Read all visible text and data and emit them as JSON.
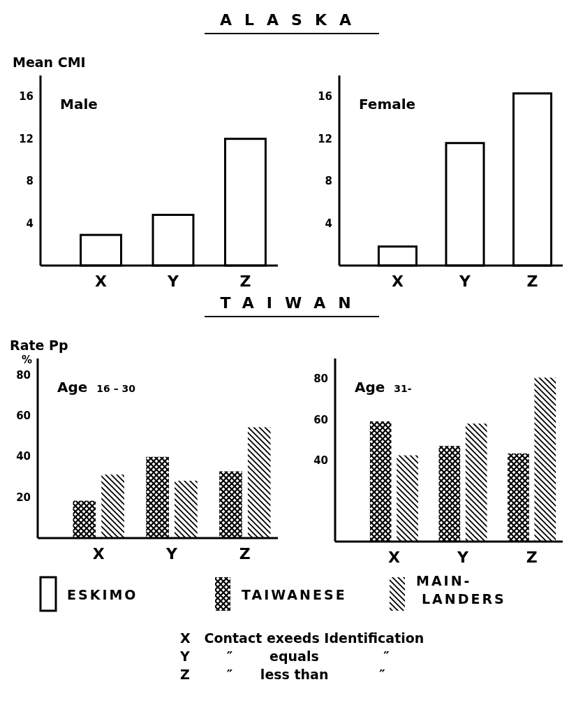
{
  "chart_data": [
    {
      "type": "bar",
      "title": "ALASKA",
      "subtitle": "Male",
      "ylabel": "Mean CMI",
      "categories": [
        "X",
        "Y",
        "Z"
      ],
      "series": [
        {
          "name": "ESKIMO",
          "color": "#ffffff",
          "values": [
            2.9,
            4.8,
            12.0
          ]
        }
      ],
      "ylim": [
        0,
        18
      ],
      "yticks": [
        4,
        8,
        12,
        16
      ],
      "legend": "bottom"
    },
    {
      "type": "bar",
      "subtitle": "Female",
      "categories": [
        "X",
        "Y",
        "Z"
      ],
      "series": [
        {
          "color": "#ffffff",
          "values": [
            1.8,
            11.6,
            16.3
          ]
        }
      ],
      "ylim": [
        0,
        18
      ],
      "yticks": [
        4,
        8,
        12,
        16
      ]
    },
    {
      "type": "bar",
      "title": "TAIWAN",
      "subtitle": "Age $_{16 – 30}$",
      "ylabel": "Rate Pp",
      "annotations": [
        "%"
      ],
      "categories": [
        "X",
        "Y",
        "Z"
      ],
      "series": [
        {
          "name": "TAIWANESE",
          "color": "#000000",
          "values": [
            18.3,
            39.8,
            32.7
          ]
        },
        {
          "name": "MAIN-LANDERS",
          "color": "#000000",
          "values": [
            31.1,
            28.1,
            54.3
          ]
        }
      ],
      "ylim": [
        0,
        88
      ],
      "yticks": [
        20,
        40,
        60,
        80
      ],
      "legend": "bottom"
    },
    {
      "type": "bar",
      "subtitle": "Age $_{31-}$",
      "categories": [
        "X",
        "Y",
        "Z"
      ],
      "series": [
        {
          "color": "#000000",
          "values": [
            59.1,
            47.0,
            43.3
          ]
        },
        {
          "color": "#000000",
          "values": [
            42.4,
            58.0,
            80.6
          ]
        }
      ],
      "ylim": [
        0,
        90
      ],
      "yticks": [
        40,
        60,
        80
      ],
      "annotations": [
        "X   Contact exeeds Identification",
        "Y        ″        equals              ″",
        "Z        ″      less than           ″"
      ]
    }
  ]
}
